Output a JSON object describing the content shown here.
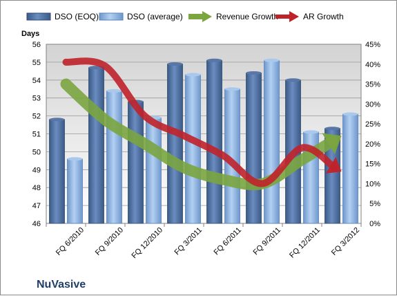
{
  "chart_data": {
    "type": "bar",
    "title": "",
    "company_label": "NuVasive",
    "ylabel": "Days",
    "y2label": "",
    "categories": [
      "FQ 6/2010",
      "FQ 9/2010",
      "FQ 12/2010",
      "FQ 3/2011",
      "FQ 6/2011",
      "FQ 9/2011",
      "FQ 12/2011",
      "FQ 3/2012"
    ],
    "ylim": [
      46,
      56
    ],
    "yticks": [
      46,
      47,
      48,
      49,
      50,
      51,
      52,
      53,
      54,
      55,
      56
    ],
    "y2lim": [
      0,
      45
    ],
    "y2ticks": [
      "0%",
      "5%",
      "10%",
      "15%",
      "20%",
      "25%",
      "30%",
      "35%",
      "40%",
      "45%"
    ],
    "series": [
      {
        "name": "DSO (EOQ)",
        "kind": "bar",
        "color": "#4f6f9f",
        "values": [
          51.8,
          54.7,
          52.8,
          54.9,
          55.1,
          54.4,
          54.0,
          51.3
        ]
      },
      {
        "name": "DSO (average)",
        "kind": "bar",
        "color": "#8fb4e3",
        "values": [
          49.6,
          53.4,
          51.9,
          54.3,
          53.5,
          55.1,
          51.1,
          52.1
        ]
      },
      {
        "name": "Revenue Growth",
        "kind": "arrow",
        "axis": "right",
        "color": "#7aa53f",
        "values": [
          35,
          26,
          20,
          14,
          11,
          10,
          16,
          22
        ]
      },
      {
        "name": "AR Growth",
        "kind": "arrow",
        "axis": "right",
        "color": "#c0222a",
        "values": [
          40.5,
          39.5,
          27,
          22,
          17,
          10,
          19,
          13
        ]
      }
    ],
    "legend_position": "top",
    "grid": true
  }
}
